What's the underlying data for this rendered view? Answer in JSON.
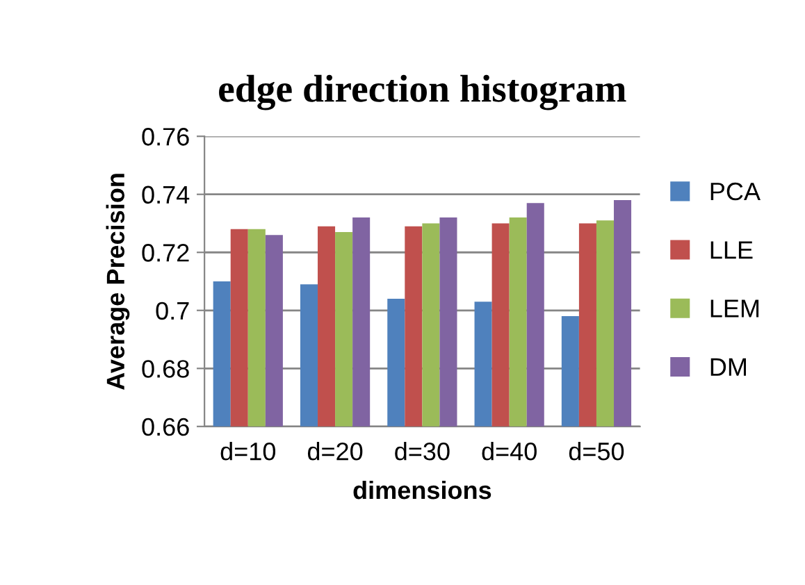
{
  "chart_data": {
    "type": "bar",
    "title": "edge direction histogram",
    "xlabel": "dimensions",
    "ylabel": "Average Precision",
    "categories": [
      "d=10",
      "d=20",
      "d=30",
      "d=40",
      "d=50"
    ],
    "series": [
      {
        "name": "PCA",
        "color": "#4f81bd",
        "values": [
          0.71,
          0.709,
          0.704,
          0.703,
          0.698
        ]
      },
      {
        "name": "LLE",
        "color": "#c0504d",
        "values": [
          0.728,
          0.729,
          0.729,
          0.73,
          0.73
        ]
      },
      {
        "name": "LEM",
        "color": "#9bbb59",
        "values": [
          0.728,
          0.727,
          0.73,
          0.732,
          0.731
        ]
      },
      {
        "name": "DM",
        "color": "#8064a2",
        "values": [
          0.726,
          0.732,
          0.732,
          0.737,
          0.738
        ]
      }
    ],
    "ylim": [
      0.66,
      0.76
    ],
    "yticks": [
      {
        "value": 0.66,
        "label": "0.66"
      },
      {
        "value": 0.68,
        "label": "0.68"
      },
      {
        "value": 0.7,
        "label": "0.7"
      },
      {
        "value": 0.72,
        "label": "0.72"
      },
      {
        "value": 0.74,
        "label": "0.74"
      },
      {
        "value": 0.76,
        "label": "0.76"
      }
    ],
    "grid": "y",
    "legend": "right"
  }
}
